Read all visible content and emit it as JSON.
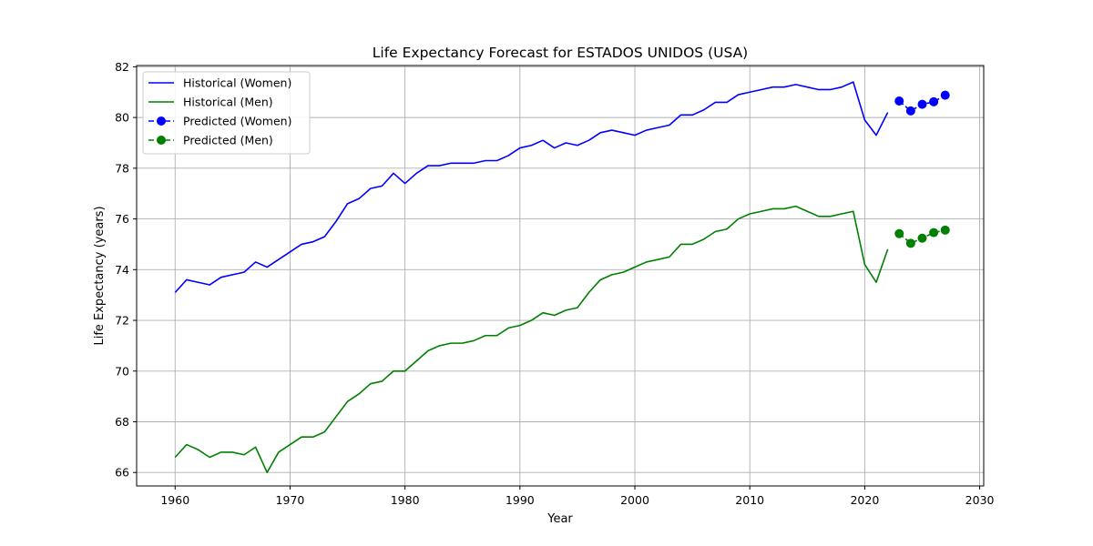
{
  "chart_data": {
    "type": "line",
    "title": "Life Expectancy Forecast for ESTADOS UNIDOS (USA)",
    "xlabel": "Year",
    "ylabel": "Life Expectancy (years)",
    "xlim": [
      1956.65,
      2030.35
    ],
    "ylim": [
      65.47,
      82.05
    ],
    "xticks": [
      1960,
      1970,
      1980,
      1990,
      2000,
      2010,
      2020,
      2030
    ],
    "yticks": [
      66,
      68,
      70,
      72,
      74,
      76,
      78,
      80,
      82
    ],
    "grid": true,
    "legend_position": "top-left",
    "series": [
      {
        "name": "Historical (Women)",
        "color": "#0000ff",
        "style": "solid",
        "marker": "none",
        "x": [
          1960,
          1961,
          1962,
          1963,
          1964,
          1965,
          1966,
          1967,
          1968,
          1969,
          1970,
          1971,
          1972,
          1973,
          1974,
          1975,
          1976,
          1977,
          1978,
          1979,
          1980,
          1981,
          1982,
          1983,
          1984,
          1985,
          1986,
          1987,
          1988,
          1989,
          1990,
          1991,
          1992,
          1993,
          1994,
          1995,
          1996,
          1997,
          1998,
          1999,
          2000,
          2001,
          2002,
          2003,
          2004,
          2005,
          2006,
          2007,
          2008,
          2009,
          2010,
          2011,
          2012,
          2013,
          2014,
          2015,
          2016,
          2017,
          2018,
          2019,
          2020,
          2021,
          2022
        ],
        "values": [
          73.1,
          73.6,
          73.5,
          73.4,
          73.7,
          73.8,
          73.9,
          74.3,
          74.1,
          74.4,
          74.7,
          75.0,
          75.1,
          75.3,
          75.9,
          76.6,
          76.8,
          77.2,
          77.3,
          77.8,
          77.4,
          77.8,
          78.1,
          78.1,
          78.2,
          78.2,
          78.2,
          78.3,
          78.3,
          78.5,
          78.8,
          78.9,
          79.1,
          78.8,
          79.0,
          78.9,
          79.1,
          79.4,
          79.5,
          79.4,
          79.3,
          79.5,
          79.6,
          79.7,
          80.1,
          80.1,
          80.3,
          80.6,
          80.6,
          80.9,
          81.0,
          81.1,
          81.2,
          81.2,
          81.3,
          81.2,
          81.1,
          81.1,
          81.2,
          81.4,
          79.9,
          79.3,
          80.2
        ]
      },
      {
        "name": "Historical (Men)",
        "color": "#008000",
        "style": "solid",
        "marker": "none",
        "x": [
          1960,
          1961,
          1962,
          1963,
          1964,
          1965,
          1966,
          1967,
          1968,
          1969,
          1970,
          1971,
          1972,
          1973,
          1974,
          1975,
          1976,
          1977,
          1978,
          1979,
          1980,
          1981,
          1982,
          1983,
          1984,
          1985,
          1986,
          1987,
          1988,
          1989,
          1990,
          1991,
          1992,
          1993,
          1994,
          1995,
          1996,
          1997,
          1998,
          1999,
          2000,
          2001,
          2002,
          2003,
          2004,
          2005,
          2006,
          2007,
          2008,
          2009,
          2010,
          2011,
          2012,
          2013,
          2014,
          2015,
          2016,
          2017,
          2018,
          2019,
          2020,
          2021,
          2022
        ],
        "values": [
          66.6,
          67.1,
          66.9,
          66.6,
          66.8,
          66.8,
          66.7,
          67.0,
          66.0,
          66.8,
          67.1,
          67.4,
          67.4,
          67.6,
          68.2,
          68.8,
          69.1,
          69.5,
          69.6,
          70.0,
          70.0,
          70.4,
          70.8,
          71.0,
          71.1,
          71.1,
          71.2,
          71.4,
          71.4,
          71.7,
          71.8,
          72.0,
          72.3,
          72.2,
          72.4,
          72.5,
          73.1,
          73.6,
          73.8,
          73.9,
          74.1,
          74.3,
          74.4,
          74.5,
          75.0,
          75.0,
          75.2,
          75.5,
          75.6,
          76.0,
          76.2,
          76.3,
          76.4,
          76.4,
          76.5,
          76.3,
          76.1,
          76.1,
          76.2,
          76.3,
          74.2,
          73.5,
          74.8
        ]
      },
      {
        "name": "Predicted (Women)",
        "color": "#0000ff",
        "style": "dashed",
        "marker": "circle",
        "x": [
          2023,
          2024,
          2025,
          2026,
          2027
        ],
        "values": [
          80.65,
          80.26,
          80.52,
          80.62,
          80.88
        ]
      },
      {
        "name": "Predicted (Men)",
        "color": "#008000",
        "style": "dashed",
        "marker": "circle",
        "x": [
          2023,
          2024,
          2025,
          2026,
          2027
        ],
        "values": [
          75.42,
          75.04,
          75.24,
          75.46,
          75.56
        ]
      }
    ]
  }
}
